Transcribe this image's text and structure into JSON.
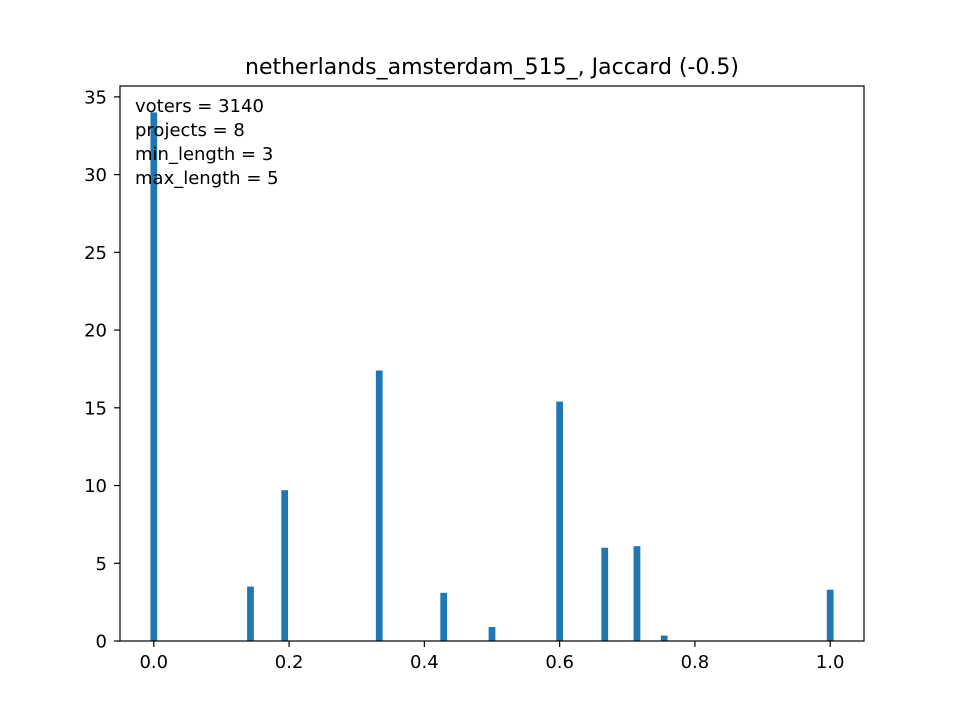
{
  "chart_data": {
    "type": "bar",
    "title": "netherlands_amsterdam_515_, Jaccard (-0.5)",
    "xlabel": "",
    "ylabel": "",
    "xlim": [
      -0.05,
      1.05
    ],
    "ylim": [
      0,
      35.7
    ],
    "bar_width": 0.01,
    "bar_color": "#1f77b4",
    "grid": false,
    "legend": "none",
    "x_ticks": [
      {
        "value": 0.0,
        "label": "0.0"
      },
      {
        "value": 0.2,
        "label": "0.2"
      },
      {
        "value": 0.4,
        "label": "0.4"
      },
      {
        "value": 0.6,
        "label": "0.6"
      },
      {
        "value": 0.8,
        "label": "0.8"
      },
      {
        "value": 1.0,
        "label": "1.0"
      }
    ],
    "y_ticks": [
      {
        "value": 0,
        "label": "0"
      },
      {
        "value": 5,
        "label": "5"
      },
      {
        "value": 10,
        "label": "10"
      },
      {
        "value": 15,
        "label": "15"
      },
      {
        "value": 20,
        "label": "20"
      },
      {
        "value": 25,
        "label": "25"
      },
      {
        "value": 30,
        "label": "30"
      },
      {
        "value": 35,
        "label": "35"
      }
    ],
    "bars": [
      {
        "x": 0.0,
        "y": 34.0
      },
      {
        "x": 0.1429,
        "y": 3.5
      },
      {
        "x": 0.1935,
        "y": 9.7
      },
      {
        "x": 0.3333,
        "y": 17.4
      },
      {
        "x": 0.4286,
        "y": 3.1
      },
      {
        "x": 0.5,
        "y": 0.9
      },
      {
        "x": 0.6,
        "y": 15.4
      },
      {
        "x": 0.6667,
        "y": 6.0
      },
      {
        "x": 0.7143,
        "y": 6.1
      },
      {
        "x": 0.7546,
        "y": 0.35
      },
      {
        "x": 1.0,
        "y": 3.3
      }
    ],
    "annotations": [
      "voters = 3140",
      "projects = 8",
      "min_length = 3",
      "max_length = 5"
    ]
  }
}
